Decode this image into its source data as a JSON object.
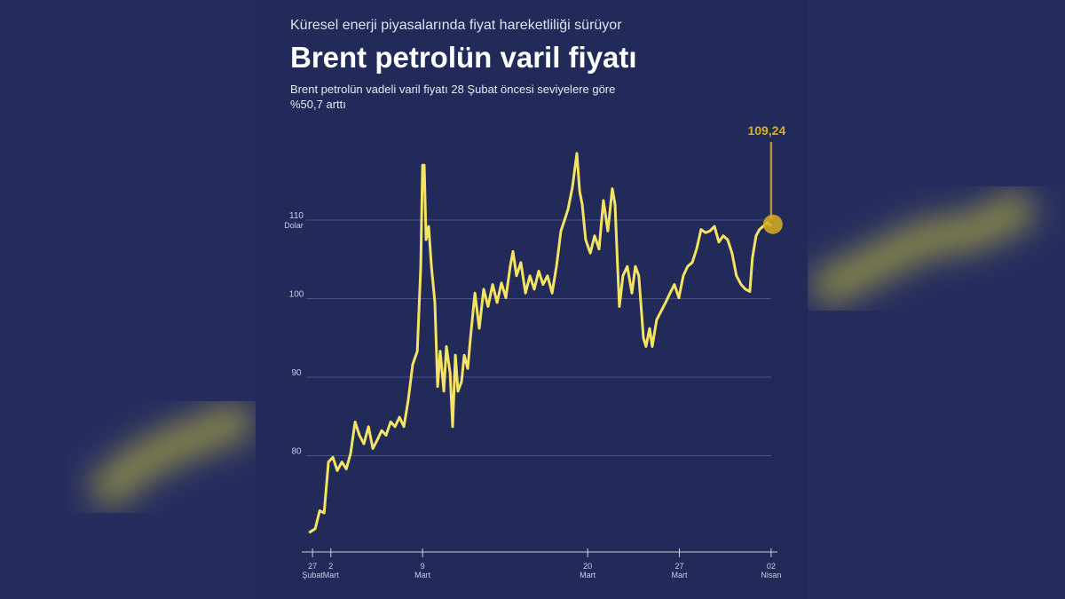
{
  "chart_data": {
    "type": "line",
    "kicker": "Küresel enerji piyasalarında fiyat hareketliliği sürüyor",
    "title": "Brent petrolün varil fiyatı",
    "description": [
      "Brent petrolün vadeli varil fiyatı 28 Şubat öncesi seviyelere göre",
      "%50,7 arttı"
    ],
    "y_unit": "Dolar",
    "ylim": [
      68,
      120
    ],
    "yticks": [
      80,
      90,
      100,
      110
    ],
    "xlim": [
      -0.2,
      25.2
    ],
    "xticks": [
      {
        "value": 0,
        "label": "27 Şubat"
      },
      {
        "value": 1,
        "label": "2 Mart"
      },
      {
        "value": 6,
        "label": "9 Mart"
      },
      {
        "value": 15,
        "label": "20 Mart"
      },
      {
        "value": 20,
        "label": "27 Mart"
      },
      {
        "value": 25,
        "label": "02 Nisan"
      }
    ],
    "grid": true,
    "series": [
      {
        "name": "Brent",
        "color": "#f5e463",
        "x": [
          -0.19,
          0.15,
          0.39,
          0.63,
          0.87,
          1.11,
          1.35,
          1.6,
          1.84,
          2.08,
          2.32,
          2.56,
          2.8,
          3.05,
          3.29,
          3.53,
          3.77,
          4.01,
          4.26,
          4.5,
          4.74,
          4.98,
          5.22,
          5.46,
          5.71,
          5.9,
          6.0,
          6.09,
          6.19,
          6.33,
          6.48,
          6.67,
          6.82,
          6.96,
          7.16,
          7.3,
          7.5,
          7.64,
          7.79,
          7.93,
          8.12,
          8.27,
          8.46,
          8.61,
          8.85,
          9.09,
          9.33,
          9.57,
          9.82,
          10.06,
          10.3,
          10.54,
          10.78,
          10.93,
          11.12,
          11.36,
          11.61,
          11.85,
          12.09,
          12.33,
          12.57,
          12.81,
          13.06,
          13.3,
          13.54,
          13.78,
          13.93,
          14.17,
          14.41,
          14.56,
          14.7,
          14.89,
          15.14,
          15.38,
          15.62,
          15.86,
          16.1,
          16.34,
          16.49,
          16.63,
          16.73,
          16.92,
          17.16,
          17.41,
          17.6,
          17.79,
          18.04,
          18.18,
          18.38,
          18.52,
          18.76,
          19.0,
          19.25,
          19.49,
          19.73,
          19.97,
          20.21,
          20.45,
          20.7,
          20.94,
          21.18,
          21.42,
          21.66,
          21.91,
          22.15,
          22.39,
          22.63,
          22.87,
          23.11,
          23.36,
          23.6,
          23.84,
          23.98,
          24.18,
          24.37,
          24.56,
          24.81,
          25.0
        ],
        "values": [
          70.2,
          70.7,
          73.0,
          72.7,
          79.2,
          79.8,
          78.1,
          79.2,
          78.3,
          80.3,
          84.3,
          82.6,
          81.5,
          83.7,
          80.9,
          82.0,
          83.2,
          82.6,
          84.3,
          83.7,
          84.9,
          83.7,
          87.1,
          91.6,
          93.3,
          104.1,
          117.0,
          117.0,
          107.5,
          109.2,
          104.1,
          99.5,
          88.8,
          93.3,
          88.2,
          93.9,
          90.5,
          83.7,
          92.8,
          88.2,
          89.4,
          92.8,
          91.1,
          95.0,
          100.7,
          96.2,
          101.2,
          99.0,
          101.8,
          99.5,
          102.0,
          100.1,
          104.1,
          106.0,
          102.9,
          104.6,
          100.7,
          102.9,
          101.2,
          103.5,
          101.8,
          102.9,
          100.7,
          104.1,
          108.6,
          110.3,
          111.4,
          114.2,
          118.5,
          113.7,
          112.0,
          107.5,
          105.8,
          108.0,
          106.3,
          112.5,
          108.6,
          114.0,
          112.0,
          104.1,
          99.0,
          102.9,
          104.1,
          100.7,
          104.1,
          102.9,
          95.0,
          93.9,
          96.2,
          93.9,
          97.3,
          98.4,
          99.5,
          100.7,
          101.8,
          100.1,
          102.9,
          104.1,
          104.6,
          106.3,
          108.8,
          108.4,
          108.6,
          109.2,
          107.2,
          108.0,
          107.5,
          105.8,
          102.9,
          101.8,
          101.2,
          100.9,
          105.2,
          108.0,
          108.8,
          109.2,
          109.7,
          109.24
        ],
        "value_labels": {
          "117": "109,24"
        },
        "highlight_color": "#d9ae1e"
      }
    ]
  }
}
